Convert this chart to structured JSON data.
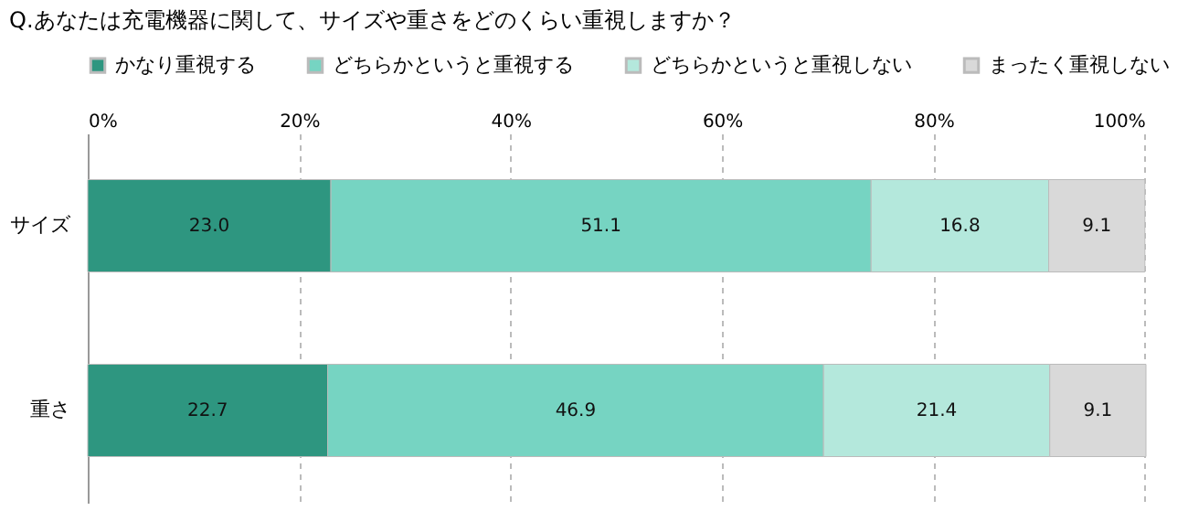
{
  "chart_data": {
    "type": "bar",
    "orientation": "horizontal",
    "stacked": true,
    "title": "Q.あなたは充電機器に関して、サイズや重さをどのくらい重視しますか？",
    "categories": [
      "サイズ",
      "重さ"
    ],
    "series": [
      {
        "name": "かなり重視する",
        "color": "#2e9680",
        "values": [
          23.0,
          22.7
        ],
        "value_labels": [
          "23.0",
          "22.7"
        ]
      },
      {
        "name": "どちらかというと重視する",
        "color": "#76d4c2",
        "values": [
          51.1,
          46.9
        ],
        "value_labels": [
          "51.1",
          "46.9"
        ]
      },
      {
        "name": "どちらかというと重視しない",
        "color": "#b4e8dc",
        "values": [
          16.8,
          21.4
        ],
        "value_labels": [
          "16.8",
          "21.4"
        ]
      },
      {
        "name": "まったく重視しない",
        "color": "#d9d9d9",
        "values": [
          9.1,
          9.1
        ],
        "value_labels": [
          "9.1",
          "9.1"
        ]
      }
    ],
    "xlim": [
      0,
      100.1
    ],
    "xticks": [
      {
        "value": 0,
        "label": "0%"
      },
      {
        "value": 20,
        "label": "20%"
      },
      {
        "value": 40,
        "label": "40%"
      },
      {
        "value": 60,
        "label": "60%"
      },
      {
        "value": 80,
        "label": "80%"
      },
      {
        "value": 100,
        "label": "100%"
      }
    ],
    "grid": "x",
    "legend": "top"
  }
}
